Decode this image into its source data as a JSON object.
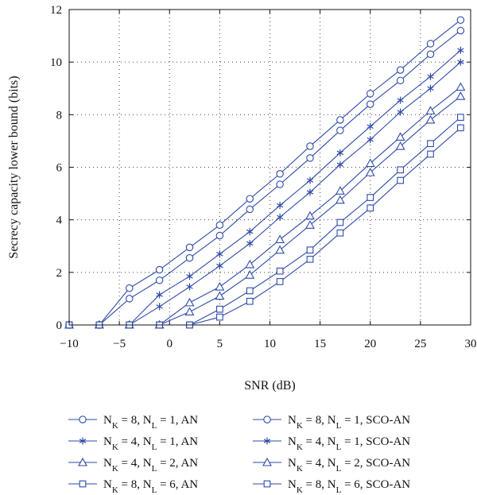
{
  "chart_data": {
    "type": "line",
    "title": "",
    "xlabel": "SNR (dB)",
    "ylabel": "Secrecy capacity lower bound (bits)",
    "xlim": [
      -10,
      30
    ],
    "ylim": [
      0,
      12
    ],
    "xticks": [
      -10,
      -5,
      0,
      5,
      10,
      15,
      20,
      25,
      30
    ],
    "yticks": [
      0,
      2,
      4,
      6,
      8,
      10,
      12
    ],
    "xtick_labels": [
      "−10",
      "−5",
      "0",
      "5",
      "10",
      "15",
      "20",
      "25",
      "30"
    ],
    "ytick_labels": [
      "0",
      "2",
      "4",
      "6",
      "8",
      "10",
      "12"
    ],
    "grid": true,
    "grid_style": "dotted",
    "legend_placement": "below",
    "line_color": "#2e4aa8",
    "x": [
      -10,
      -7,
      -4,
      -1,
      2,
      5,
      8,
      11,
      14,
      17,
      20,
      23,
      26,
      29
    ],
    "series": [
      {
        "name": "N_K = 8, N_L = 1, AN",
        "legend": {
          "sub1": "K",
          "mid": " = 8, N",
          "sub2": "L",
          "tail": " = 1, AN"
        },
        "marker": "circle",
        "values": [
          0,
          0,
          1.0,
          1.7,
          2.55,
          3.4,
          4.4,
          5.35,
          6.35,
          7.4,
          8.4,
          9.3,
          10.3,
          11.2
        ]
      },
      {
        "name": "N_K = 8, N_L = 1, SCO-AN",
        "legend": {
          "sub1": "K",
          "mid": " = 8, N",
          "sub2": "L",
          "tail": " = 1, SCO-AN"
        },
        "marker": "circle",
        "values": [
          0,
          0,
          1.4,
          2.1,
          2.95,
          3.8,
          4.8,
          5.75,
          6.8,
          7.8,
          8.8,
          9.7,
          10.7,
          11.6
        ]
      },
      {
        "name": "N_K = 4, N_L = 1, AN",
        "legend": {
          "sub1": "K",
          "mid": " = 4, N",
          "sub2": "L",
          "tail": " = 1, AN"
        },
        "marker": "star",
        "values": [
          0,
          0,
          0,
          0.7,
          1.45,
          2.25,
          3.1,
          4.1,
          5.05,
          6.1,
          7.05,
          8.1,
          9.0,
          10.0
        ]
      },
      {
        "name": "N_K = 4, N_L = 1, SCO-AN",
        "legend": {
          "sub1": "K",
          "mid": " = 4, N",
          "sub2": "L",
          "tail": " = 1, SCO-AN"
        },
        "marker": "star",
        "values": [
          0,
          0,
          0,
          1.15,
          1.85,
          2.7,
          3.55,
          4.55,
          5.5,
          6.55,
          7.55,
          8.55,
          9.45,
          10.45
        ]
      },
      {
        "name": "N_K = 4, N_L = 2, AN",
        "legend": {
          "sub1": "K",
          "mid": " = 4, N",
          "sub2": "L",
          "tail": " = 2, AN"
        },
        "marker": "triangle",
        "values": [
          0,
          0,
          0,
          0,
          0.5,
          1.1,
          1.9,
          2.85,
          3.8,
          4.75,
          5.8,
          6.8,
          7.8,
          8.7
        ]
      },
      {
        "name": "N_K = 4, N_L = 2, SCO-AN",
        "legend": {
          "sub1": "K",
          "mid": " = 4, N",
          "sub2": "L",
          "tail": " = 2, SCO-AN"
        },
        "marker": "triangle",
        "values": [
          0,
          0,
          0,
          0,
          0.85,
          1.45,
          2.3,
          3.25,
          4.15,
          5.1,
          6.15,
          7.15,
          8.15,
          9.05
        ]
      },
      {
        "name": "N_K = 8, N_L = 6, AN",
        "legend": {
          "sub1": "K",
          "mid": " = 8, N",
          "sub2": "L",
          "tail": " = 6, AN"
        },
        "marker": "square",
        "values": [
          0,
          0,
          0,
          0,
          0,
          0.3,
          0.9,
          1.65,
          2.5,
          3.5,
          4.45,
          5.5,
          6.5,
          7.5
        ]
      },
      {
        "name": "N_K = 8, N_L = 6, SCO-AN",
        "legend": {
          "sub1": "K",
          "mid": " = 8, N",
          "sub2": "L",
          "tail": " = 6, SCO-AN"
        },
        "marker": "square",
        "values": [
          0,
          0,
          0,
          0,
          0,
          0.6,
          1.3,
          2.05,
          2.85,
          3.9,
          4.85,
          5.9,
          6.9,
          7.9
        ]
      }
    ]
  }
}
